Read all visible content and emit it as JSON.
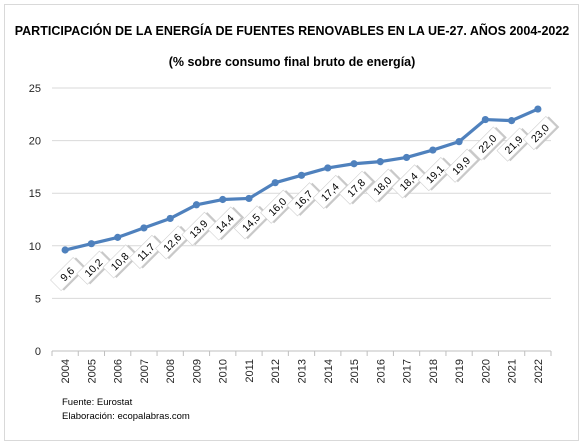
{
  "chart_data": {
    "type": "line",
    "title": "PARTICIPACIÓN DE LA ENERGÍA DE FUENTES RENOVABLES EN LA UE-27. AÑOS 2004-2022",
    "subtitle": "(% sobre consumo final bruto de energía)",
    "xlabel": "",
    "ylabel": "",
    "categories": [
      "2004",
      "2005",
      "2006",
      "2007",
      "2008",
      "2009",
      "2010",
      "2011",
      "2012",
      "2013",
      "2014",
      "2015",
      "2016",
      "2017",
      "2018",
      "2019",
      "2020",
      "2021",
      "2022"
    ],
    "series": [
      {
        "values": [
          9.6,
          10.2,
          10.8,
          11.7,
          12.6,
          13.9,
          14.4,
          14.5,
          16.0,
          16.7,
          17.4,
          17.8,
          18.0,
          18.4,
          19.1,
          19.9,
          22.0,
          21.9,
          23.0
        ],
        "labels": [
          "9,6",
          "10,2",
          "10,8",
          "11,7",
          "12,6",
          "13,9",
          "14,4",
          "14,5",
          "16,0",
          "16,7",
          "17,4",
          "17,8",
          "18,0",
          "18,4",
          "19,1",
          "19,9",
          "22,0",
          "21,9",
          "23,0"
        ]
      }
    ],
    "ylim": [
      0,
      25
    ],
    "yticks": [
      0,
      5,
      10,
      15,
      20,
      25
    ],
    "grid": true,
    "legend": "none",
    "line_color": "#4f81bd"
  },
  "footer": {
    "source": "Fuente: Eurostat",
    "credit": "Elaboración: ecopalabras.com"
  }
}
